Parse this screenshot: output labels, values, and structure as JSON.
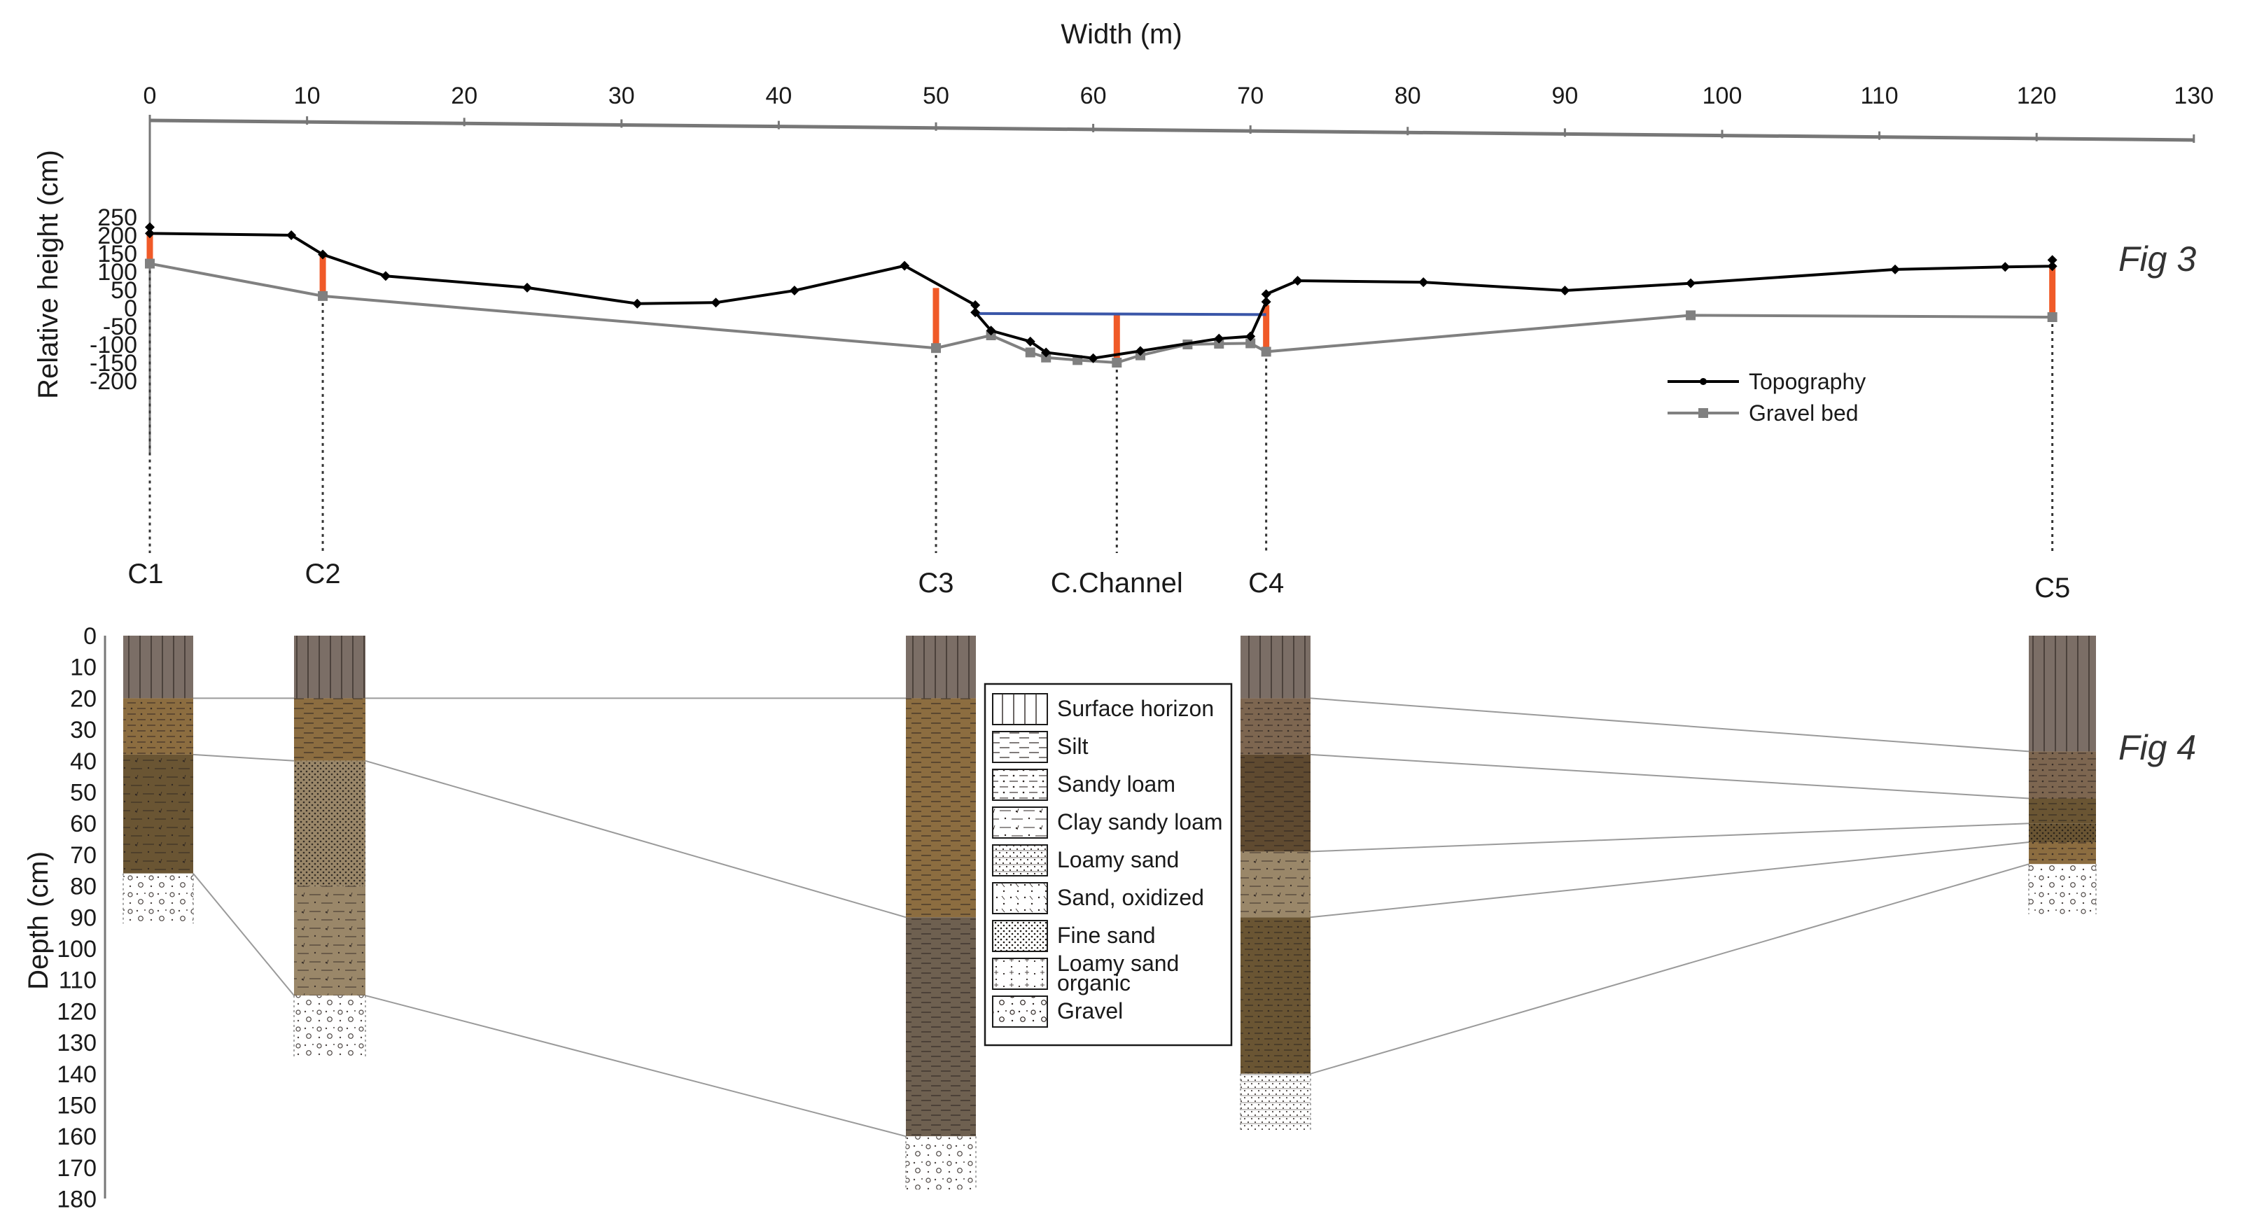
{
  "fig3": {
    "label": "Fig 3",
    "x_axis_title": "Width (m)",
    "y_axis_title": "Relative height (cm)",
    "x_ticks": [
      "0",
      "10",
      "20",
      "30",
      "40",
      "50",
      "60",
      "70",
      "80",
      "90",
      "100",
      "110",
      "120",
      "130"
    ],
    "y_ticks": [
      "250",
      "200",
      "150",
      "100",
      "50",
      "0",
      "-50",
      "-100",
      "-150",
      "-200"
    ],
    "legend": {
      "topography": "Topography",
      "gravel_bed": "Gravel bed"
    },
    "colors": {
      "topography": "#000000",
      "gravel_bed": "#808080",
      "core": "#f05a28",
      "water": "#3a56a8"
    },
    "chart_data": {
      "type": "line",
      "x_label": "Width (m)",
      "y_label": "Relative height (cm)",
      "xlim": [
        0,
        130
      ],
      "ylim": [
        -200,
        250
      ],
      "series": [
        {
          "name": "Topography",
          "x": [
            0,
            0,
            9,
            11,
            15,
            24,
            31,
            36,
            41,
            48,
            52.5,
            52.5,
            53.5,
            56,
            57,
            60,
            63,
            68,
            70,
            71,
            71,
            73,
            81,
            90,
            98,
            111,
            118,
            121,
            121
          ],
          "y": [
            222,
            205,
            200,
            147,
            88,
            56,
            12,
            15,
            48,
            116,
            8,
            -12,
            -62,
            -92,
            -122,
            -138,
            -118,
            -84,
            -78,
            17,
            38,
            75,
            71,
            48,
            68,
            106,
            113,
            115,
            132
          ]
        },
        {
          "name": "Gravel bed",
          "x": [
            0,
            11,
            50,
            53.5,
            56,
            57,
            59,
            61.5,
            63,
            66,
            68,
            70,
            71,
            98,
            121
          ],
          "y": [
            122,
            33,
            -110,
            -75,
            -122,
            -136,
            -143,
            -150,
            -130,
            -100,
            -98,
            -97,
            -120,
            -20,
            -25
          ]
        }
      ],
      "cores": [
        {
          "name": "C1",
          "x": 0,
          "top": 205,
          "bottom": 122
        },
        {
          "name": "C2",
          "x": 11,
          "top": 147,
          "bottom": 33
        },
        {
          "name": "C3",
          "x": 50,
          "top": 55,
          "bottom": -110
        },
        {
          "name": "C.Channel",
          "x": 61.5,
          "top": -15,
          "bottom": -150
        },
        {
          "name": "C4",
          "x": 71,
          "top": 8,
          "bottom": -120
        },
        {
          "name": "C5",
          "x": 121,
          "top": 115,
          "bottom": -25
        }
      ],
      "water_level": {
        "x": [
          52.5,
          71
        ],
        "y": -15
      }
    }
  },
  "fig4": {
    "label": "Fig 4",
    "y_axis_title": "Depth (cm)",
    "y_ticks": [
      "0",
      "10",
      "20",
      "30",
      "40",
      "50",
      "60",
      "70",
      "80",
      "90",
      "100",
      "110",
      "120",
      "130",
      "140",
      "150",
      "160",
      "170",
      "180"
    ],
    "legend_items": [
      {
        "label": "Surface horizon",
        "pattern": "surface"
      },
      {
        "label": "Silt",
        "pattern": "silt"
      },
      {
        "label": "Sandy loam",
        "pattern": "sandyloam"
      },
      {
        "label": "Clay sandy loam",
        "pattern": "claysandy"
      },
      {
        "label": "Loamy sand",
        "pattern": "loamysand"
      },
      {
        "label": "Sand, oxidized",
        "pattern": "sandox"
      },
      {
        "label": "Fine sand",
        "pattern": "finesand"
      },
      {
        "label": "Loamy sand organic",
        "pattern": "lsorganic"
      },
      {
        "label": "Gravel",
        "pattern": "gravel"
      }
    ],
    "columns": [
      {
        "name": "C1",
        "layers": [
          {
            "top": 0,
            "bottom": 20,
            "type": "surface",
            "color": "#7b6e66"
          },
          {
            "top": 20,
            "bottom": 38,
            "type": "sandyloam",
            "color": "#8c6d40"
          },
          {
            "top": 38,
            "bottom": 76,
            "type": "claysandy",
            "color": "#6a5533"
          },
          {
            "top": 76,
            "bottom": 92,
            "type": "gravel",
            "color": "#ffffff"
          }
        ]
      },
      {
        "name": "C2",
        "layers": [
          {
            "top": 0,
            "bottom": 20,
            "type": "surface",
            "color": "#7b6e66"
          },
          {
            "top": 20,
            "bottom": 40,
            "type": "silt",
            "color": "#8c6d40"
          },
          {
            "top": 40,
            "bottom": 80,
            "type": "finesand",
            "color": "#9a8769"
          },
          {
            "top": 80,
            "bottom": 115,
            "type": "claysandy",
            "color": "#9a8769"
          },
          {
            "top": 115,
            "bottom": 135,
            "type": "gravel",
            "color": "#ffffff"
          }
        ]
      },
      {
        "name": "C3",
        "layers": [
          {
            "top": 0,
            "bottom": 20,
            "type": "surface",
            "color": "#7b6e66"
          },
          {
            "top": 20,
            "bottom": 90,
            "type": "silt",
            "color": "#8c6d40"
          },
          {
            "top": 90,
            "bottom": 160,
            "type": "silt",
            "color": "#6e6050"
          },
          {
            "top": 160,
            "bottom": 177,
            "type": "gravel",
            "color": "#ffffff"
          }
        ]
      },
      {
        "name": "C4",
        "layers": [
          {
            "top": 0,
            "bottom": 20,
            "type": "surface",
            "color": "#7b6e66"
          },
          {
            "top": 20,
            "bottom": 38,
            "type": "sandyloam",
            "color": "#7d6650"
          },
          {
            "top": 38,
            "bottom": 69,
            "type": "silt",
            "color": "#5f4a30"
          },
          {
            "top": 69,
            "bottom": 90,
            "type": "claysandy",
            "color": "#9a8769"
          },
          {
            "top": 90,
            "bottom": 140,
            "type": "sandyloam",
            "color": "#6a5533"
          },
          {
            "top": 140,
            "bottom": 158,
            "type": "loamysand",
            "color": "#ffffff"
          }
        ]
      },
      {
        "name": "C5",
        "layers": [
          {
            "top": 0,
            "bottom": 37,
            "type": "surface",
            "color": "#7b6e66"
          },
          {
            "top": 37,
            "bottom": 52,
            "type": "sandyloam",
            "color": "#7d6650"
          },
          {
            "top": 52,
            "bottom": 60,
            "type": "sandyloam",
            "color": "#6a5533"
          },
          {
            "top": 60,
            "bottom": 66,
            "type": "finesand",
            "color": "#6a5533"
          },
          {
            "top": 66,
            "bottom": 73,
            "type": "sandyloam",
            "color": "#8c6d40"
          },
          {
            "top": 73,
            "bottom": 89,
            "type": "gravel",
            "color": "#ffffff"
          }
        ]
      }
    ]
  }
}
